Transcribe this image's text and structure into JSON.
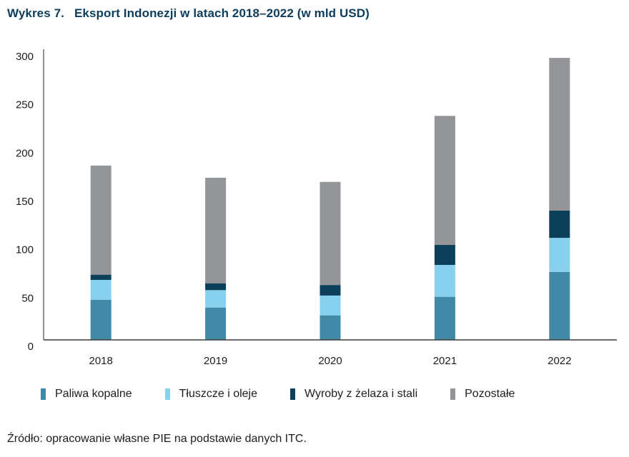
{
  "header": {
    "figure_number": "Wykres 7.",
    "title": "Eksport Indonezji w latach 2018–2022 (w mld USD)"
  },
  "chart_data": {
    "type": "bar",
    "stacked": true,
    "title": "Eksport Indonezji w latach 2018–2022 (w mld USD)",
    "xlabel": "",
    "ylabel": "",
    "categories": [
      "2018",
      "2019",
      "2020",
      "2021",
      "2022"
    ],
    "ylim": [
      0,
      300
    ],
    "yticks": [
      0,
      50,
      100,
      150,
      200,
      250,
      300
    ],
    "grid": false,
    "legend_position": "bottom",
    "series": [
      {
        "name": "Paliwa kopalne",
        "color": "#4289a7",
        "values": [
          41.4,
          33.5,
          25.4,
          44.6,
          70.4
        ]
      },
      {
        "name": "Tłuszcze i oleje",
        "color": "#87d1ee",
        "values": [
          20.7,
          18.0,
          20.5,
          33.0,
          35.2
        ]
      },
      {
        "name": "Wyroby z żelaza i stali",
        "color": "#0b3f5a",
        "values": [
          5.4,
          7.1,
          10.9,
          20.7,
          28.3
        ]
      },
      {
        "name": "Pozostałe",
        "color": "#939598",
        "values": [
          112.9,
          109.2,
          106.7,
          133.5,
          157.9
        ]
      }
    ]
  },
  "footer": {
    "source": "Źródło: opracowanie własne PIE na podstawie danych ITC."
  }
}
